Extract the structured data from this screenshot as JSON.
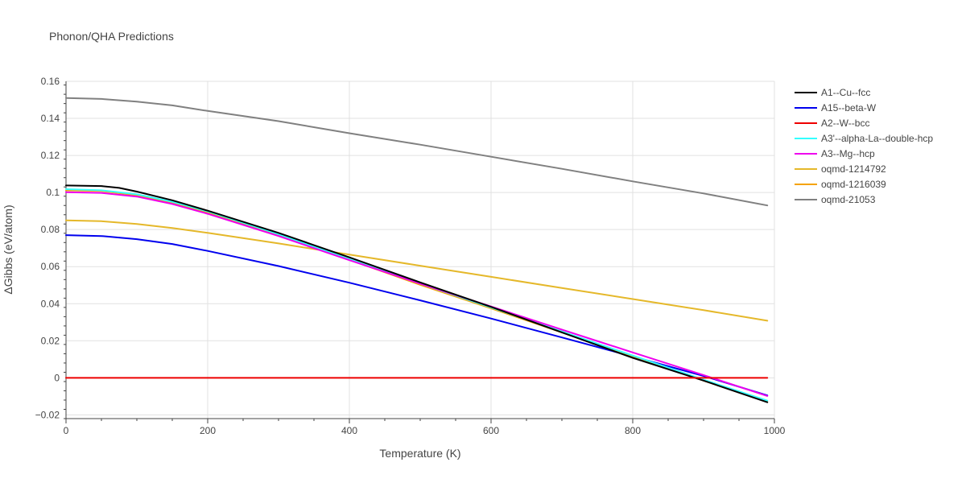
{
  "chart_data": {
    "type": "line",
    "title": "Phonon/QHA Predictions",
    "xlabel": "Temperature (K)",
    "ylabel": "ΔGibbs (eV/atom)",
    "xlim": [
      0,
      1000
    ],
    "ylim": [
      -0.022,
      0.16
    ],
    "xticks": [
      0,
      200,
      400,
      600,
      800,
      1000
    ],
    "xtick_labels": [
      "0",
      "200",
      "400",
      "600",
      "800",
      "1000"
    ],
    "yticks": [
      -0.02,
      0,
      0.02,
      0.04,
      0.06,
      0.08,
      0.1,
      0.12,
      0.14,
      0.16
    ],
    "ytick_labels": [
      "−0.02",
      "0",
      "0.02",
      "0.04",
      "0.06",
      "0.08",
      "0.1",
      "0.12",
      "0.14",
      "0.16"
    ],
    "grid": true,
    "legend_position": "top-right",
    "series": [
      {
        "name": "oqmd-21053",
        "color": "#808080",
        "x": [
          0,
          50,
          100,
          150,
          200,
          300,
          400,
          500,
          600,
          700,
          800,
          900,
          990
        ],
        "y": [
          0.151,
          0.1505,
          0.149,
          0.147,
          0.144,
          0.1385,
          0.132,
          0.1258,
          0.1193,
          0.1128,
          0.106,
          0.0995,
          0.093
        ]
      },
      {
        "name": "oqmd-1214792",
        "color": "#e5b82a",
        "x": [
          0,
          50,
          100,
          150,
          200,
          300,
          400,
          500,
          600,
          700,
          800,
          900,
          990
        ],
        "y": [
          0.085,
          0.0845,
          0.083,
          0.0808,
          0.0782,
          0.0725,
          0.0665,
          0.0605,
          0.0545,
          0.0485,
          0.0425,
          0.0365,
          0.0308
        ]
      },
      {
        "name": "A15--beta-W",
        "color": "#0000ee",
        "x": [
          0,
          50,
          100,
          150,
          200,
          300,
          400,
          500,
          600,
          700,
          800,
          900,
          990
        ],
        "y": [
          0.077,
          0.0765,
          0.0748,
          0.0722,
          0.0685,
          0.0603,
          0.0513,
          0.0418,
          0.032,
          0.0218,
          0.0115,
          0.001,
          -0.0095
        ]
      },
      {
        "name": "oqmd-1216039",
        "color": "#f5a300",
        "x": [
          0,
          50,
          100,
          150,
          200,
          300,
          400,
          500,
          600,
          700,
          800,
          900,
          990
        ],
        "y": [
          0.1012,
          0.1008,
          0.0985,
          0.0945,
          0.0893,
          0.0772,
          0.0637,
          0.0502,
          0.0375,
          0.0245,
          0.0115,
          -0.0015,
          -0.013
        ]
      },
      {
        "name": "A3'--alpha-La--double-hcp",
        "color": "#33ffff",
        "x": [
          0,
          50,
          100,
          150,
          200,
          300,
          400,
          500,
          600,
          700,
          800,
          900,
          990
        ],
        "y": [
          0.1018,
          0.1012,
          0.099,
          0.095,
          0.0898,
          0.0775,
          0.064,
          0.0508,
          0.038,
          0.025,
          0.012,
          -0.001,
          -0.0123
        ]
      },
      {
        "name": "A3--Mg--hcp",
        "color": "#ee00ee",
        "x": [
          0,
          50,
          100,
          150,
          200,
          300,
          400,
          500,
          600,
          700,
          800,
          900,
          990
        ],
        "y": [
          0.1002,
          0.0998,
          0.0978,
          0.0938,
          0.0885,
          0.0765,
          0.0635,
          0.0508,
          0.0385,
          0.026,
          0.0137,
          0.0015,
          -0.0098
        ]
      },
      {
        "name": "A1--Cu--fcc",
        "color": "#000000",
        "x": [
          0,
          50,
          75,
          100,
          150,
          200,
          300,
          400,
          500,
          600,
          700,
          800,
          900,
          990
        ],
        "y": [
          0.1038,
          0.1035,
          0.1025,
          0.1005,
          0.0958,
          0.0902,
          0.0782,
          0.065,
          0.0515,
          0.0383,
          0.0245,
          0.0108,
          -0.0015,
          -0.0132
        ]
      },
      {
        "name": "A2--W--bcc",
        "color": "#ee0000",
        "x": [
          0,
          990
        ],
        "y": [
          0,
          0
        ]
      }
    ],
    "legend_order": [
      "A1--Cu--fcc",
      "A15--beta-W",
      "A2--W--bcc",
      "A3'--alpha-La--double-hcp",
      "A3--Mg--hcp",
      "oqmd-1214792",
      "oqmd-1216039",
      "oqmd-21053"
    ]
  }
}
